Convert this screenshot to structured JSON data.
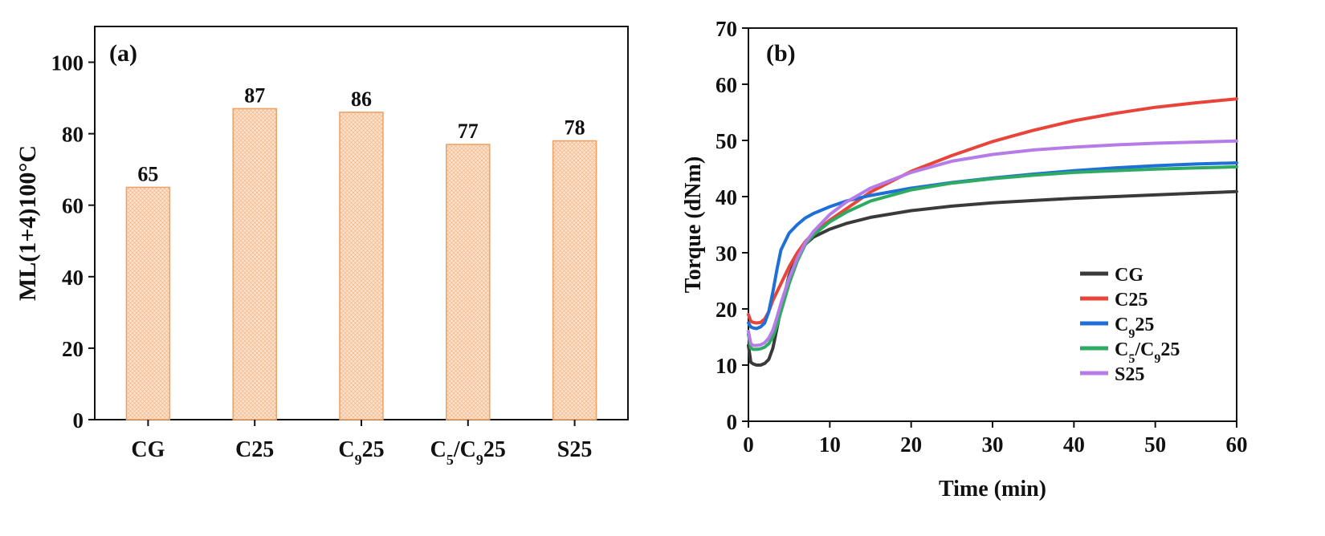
{
  "chart_data": [
    {
      "type": "bar",
      "panel_label": "(a)",
      "categories": [
        "CG",
        "C25",
        "C₉25",
        "C₅/C₉25",
        "S25"
      ],
      "values": [
        65,
        87,
        86,
        77,
        78
      ],
      "value_labels": [
        "65",
        "87",
        "86",
        "77",
        "78"
      ],
      "ylabel": "ML(1+4)100°C",
      "xlabel": "",
      "ylim": [
        0,
        110
      ],
      "yticks": [
        0,
        20,
        40,
        60,
        80,
        100
      ],
      "bar_fill": "#fde3cc",
      "bar_stroke": "#f0a060",
      "bar_pattern": "crosshatch",
      "grid": false
    },
    {
      "type": "line",
      "panel_label": "(b)",
      "xlabel": "Time (min)",
      "ylabel": "Torque (dNm)",
      "xlim": [
        0,
        60
      ],
      "ylim": [
        0,
        70
      ],
      "xticks": [
        0,
        10,
        20,
        30,
        40,
        50,
        60
      ],
      "yticks": [
        0,
        10,
        20,
        30,
        40,
        50,
        60,
        70
      ],
      "grid": false,
      "legend_position": "bottom-right",
      "series": [
        {
          "name": "CG",
          "color": "#3a3a3a",
          "x": [
            0,
            0.3,
            0.6,
            1,
            1.5,
            2,
            2.5,
            3,
            3.5,
            4,
            5,
            6,
            7,
            8,
            10,
            12,
            15,
            20,
            25,
            30,
            35,
            40,
            45,
            50,
            55,
            60
          ],
          "y": [
            13.5,
            10.5,
            10.2,
            10,
            10,
            10.3,
            11,
            13,
            16.5,
            20,
            26,
            29.5,
            31.5,
            32.8,
            34.2,
            35.2,
            36.3,
            37.5,
            38.3,
            38.9,
            39.3,
            39.7,
            40.0,
            40.3,
            40.6,
            40.9
          ]
        },
        {
          "name": "C25",
          "color": "#e8443a",
          "x": [
            0,
            0.3,
            0.6,
            1,
            1.5,
            2,
            2.5,
            3,
            4,
            5,
            6,
            7,
            8,
            10,
            12,
            15,
            20,
            25,
            30,
            35,
            40,
            45,
            50,
            55,
            60
          ],
          "y": [
            19,
            17.8,
            17.6,
            17.5,
            17.6,
            18.2,
            19.5,
            21.5,
            24.5,
            27.5,
            30,
            32,
            33.5,
            35.8,
            37.8,
            40.8,
            44.5,
            47.3,
            49.8,
            51.8,
            53.5,
            54.8,
            55.9,
            56.7,
            57.4
          ]
        },
        {
          "name": "C₉25",
          "color": "#1e6fd8",
          "x": [
            0,
            0.3,
            0.6,
            1,
            1.5,
            2,
            2.5,
            3,
            3.5,
            4,
            5,
            6,
            7,
            8,
            10,
            12,
            15,
            20,
            25,
            30,
            35,
            40,
            45,
            50,
            55,
            60
          ],
          "y": [
            17.5,
            16.8,
            16.6,
            16.5,
            16.8,
            17.5,
            19.5,
            23,
            27,
            30.5,
            33.5,
            35,
            36.2,
            37,
            38.2,
            39.2,
            40.2,
            41.5,
            42.5,
            43.3,
            44.0,
            44.6,
            45.1,
            45.5,
            45.8,
            46.0
          ]
        },
        {
          "name": "C₅/C₉25",
          "color": "#2eaa62",
          "x": [
            0,
            0.3,
            0.6,
            1,
            1.5,
            2,
            2.5,
            3,
            3.5,
            4,
            5,
            6,
            7,
            8,
            10,
            12,
            15,
            20,
            25,
            30,
            35,
            40,
            45,
            50,
            55,
            60
          ],
          "y": [
            15.5,
            13,
            12.8,
            12.8,
            12.9,
            13.2,
            13.8,
            15,
            17,
            19.5,
            24.5,
            28.5,
            31.5,
            33.2,
            35.5,
            37.2,
            39.2,
            41.2,
            42.4,
            43.2,
            43.8,
            44.3,
            44.6,
            44.9,
            45.1,
            45.3
          ]
        },
        {
          "name": "S25",
          "color": "#b57ce8",
          "x": [
            0,
            0.3,
            0.6,
            1,
            1.5,
            2,
            2.5,
            3,
            3.5,
            4,
            5,
            6,
            7,
            8,
            10,
            12,
            15,
            20,
            25,
            30,
            35,
            40,
            45,
            50,
            55,
            60
          ],
          "y": [
            16,
            13.8,
            13.5,
            13.5,
            13.6,
            14,
            14.8,
            16.2,
            18.5,
            21,
            25.5,
            29,
            31.8,
            33.8,
            36.8,
            39,
            41.5,
            44.3,
            46.3,
            47.5,
            48.3,
            48.8,
            49.2,
            49.5,
            49.7,
            49.9
          ]
        }
      ]
    }
  ]
}
